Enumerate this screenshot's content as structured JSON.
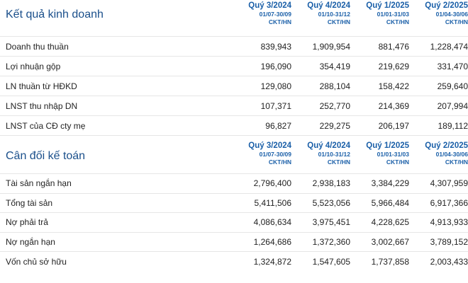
{
  "income": {
    "title": "Kết quả kinh doanh",
    "columns": [
      {
        "quarter": "Quý 3/2024",
        "dates": "01/07-30/09",
        "unit": "CKT/HN"
      },
      {
        "quarter": "Quý 4/2024",
        "dates": "01/10-31/12",
        "unit": "CKT/HN"
      },
      {
        "quarter": "Quý 1/2025",
        "dates": "01/01-31/03",
        "unit": "CKT/HN"
      },
      {
        "quarter": "Quý 2/2025",
        "dates": "01/04-30/06",
        "unit": "CKT/HN"
      }
    ],
    "rows": [
      {
        "label": "Doanh thu thuần",
        "values": [
          "839,943",
          "1,909,954",
          "881,476",
          "1,228,474"
        ]
      },
      {
        "label": "Lợi nhuận gộp",
        "values": [
          "196,090",
          "354,419",
          "219,629",
          "331,470"
        ]
      },
      {
        "label": "LN thuần từ HĐKD",
        "values": [
          "129,080",
          "288,104",
          "158,422",
          "259,640"
        ]
      },
      {
        "label": "LNST thu nhập DN",
        "values": [
          "107,371",
          "252,770",
          "214,369",
          "207,994"
        ]
      },
      {
        "label": "LNST của CĐ cty mẹ",
        "values": [
          "96,827",
          "229,275",
          "206,197",
          "189,112"
        ]
      }
    ]
  },
  "balance": {
    "title": "Cân đối kế toán",
    "columns": [
      {
        "quarter": "Quý 3/2024",
        "dates": "01/07-30/09",
        "unit": "CKT/HN"
      },
      {
        "quarter": "Quý 4/2024",
        "dates": "01/10-31/12",
        "unit": "CKT/HN"
      },
      {
        "quarter": "Quý 1/2025",
        "dates": "01/01-31/03",
        "unit": "CKT/HN"
      },
      {
        "quarter": "Quý 2/2025",
        "dates": "01/04-30/06",
        "unit": "CKT/HN"
      }
    ],
    "rows": [
      {
        "label": "Tài sản ngắn hạn",
        "values": [
          "2,796,400",
          "2,938,183",
          "3,384,229",
          "4,307,959"
        ]
      },
      {
        "label": "Tổng tài sản",
        "values": [
          "5,411,506",
          "5,523,056",
          "5,966,484",
          "6,917,366"
        ]
      },
      {
        "label": "Nợ phải trả",
        "values": [
          "4,086,634",
          "3,975,451",
          "4,228,625",
          "4,913,933"
        ]
      },
      {
        "label": "Nợ ngắn hạn",
        "values": [
          "1,264,686",
          "1,372,360",
          "3,002,667",
          "3,789,152"
        ]
      },
      {
        "label": "Vốn chủ sở hữu",
        "values": [
          "1,324,872",
          "1,547,605",
          "1,737,858",
          "2,003,433"
        ]
      }
    ]
  }
}
